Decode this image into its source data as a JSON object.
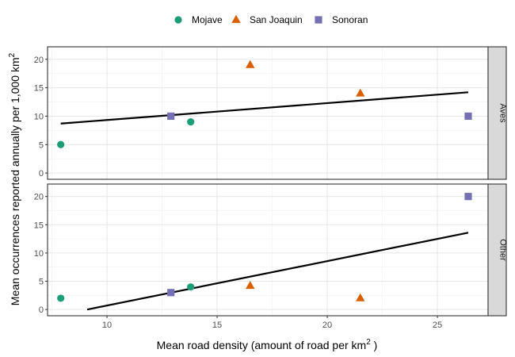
{
  "chart_data": {
    "type": "scatter",
    "x_label": "Mean road density (amount of road per  km",
    "x_label_sup": "2",
    "x_label_tail": " )",
    "y_label": "Mean occurrences reported annually per 1,000 km",
    "y_label_sup": "2",
    "x_range": [
      7.3,
      27.3
    ],
    "x_ticks": [
      10,
      15,
      20,
      25
    ],
    "y_range": [
      -1.1,
      22.2
    ],
    "y_ticks": [
      0,
      5,
      10,
      15,
      20
    ],
    "grid": true,
    "legend_position": "top",
    "legend": [
      {
        "name": "Mojave",
        "shape": "circle",
        "color": "#1b9e77"
      },
      {
        "name": "San Joaquin",
        "shape": "triangle",
        "color": "#d95f02"
      },
      {
        "name": "Sonoran",
        "shape": "square",
        "color": "#7570b3"
      }
    ],
    "facets": [
      {
        "label": "Aves",
        "points": [
          {
            "series": "Mojave",
            "x": 7.9,
            "y": 5
          },
          {
            "series": "Mojave",
            "x": 13.8,
            "y": 9
          },
          {
            "series": "San Joaquin",
            "x": 16.5,
            "y": 19
          },
          {
            "series": "San Joaquin",
            "x": 21.5,
            "y": 14
          },
          {
            "series": "Sonoran",
            "x": 12.9,
            "y": 10
          },
          {
            "series": "Sonoran",
            "x": 26.4,
            "y": 10
          }
        ],
        "trend": [
          [
            7.9,
            8.7
          ],
          [
            26.4,
            14.2
          ]
        ]
      },
      {
        "label": "Other",
        "points": [
          {
            "series": "Mojave",
            "x": 7.9,
            "y": 2
          },
          {
            "series": "Mojave",
            "x": 13.8,
            "y": 4
          },
          {
            "series": "San Joaquin",
            "x": 16.5,
            "y": 4.2
          },
          {
            "series": "San Joaquin",
            "x": 21.5,
            "y": 2
          },
          {
            "series": "Sonoran",
            "x": 12.9,
            "y": 3
          },
          {
            "series": "Sonoran",
            "x": 26.4,
            "y": 20
          }
        ],
        "trend": [
          [
            9.1,
            0
          ],
          [
            26.4,
            13.6
          ]
        ]
      }
    ]
  }
}
